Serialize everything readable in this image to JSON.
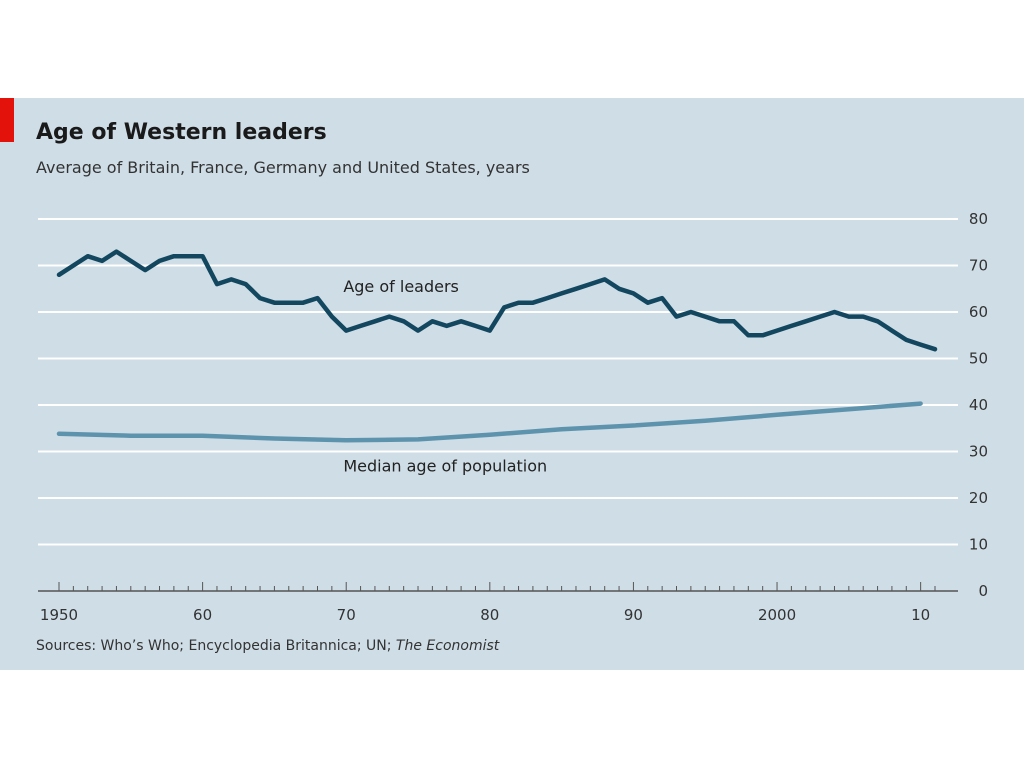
{
  "colors": {
    "panel": "#cfdde6",
    "accent": "#e3120b",
    "grid": "#ffffff",
    "leaders_line": "#12475f",
    "population_line": "#5e93ad"
  },
  "source": {
    "prefix": "Sources: Who’s Who; Encyclopedia Britannica; UN; ",
    "italic": "The Economist"
  },
  "chart_data": {
    "type": "line",
    "title": "Age of Western leaders",
    "subtitle": "Average of Britain, France, Germany and United States, years",
    "xlabel": "",
    "ylabel": "",
    "xlim": [
      1950,
      2011
    ],
    "ylim": [
      0,
      80
    ],
    "x_ticks": [
      1950,
      1960,
      1970,
      1980,
      1990,
      2000,
      2010
    ],
    "x_tick_labels": [
      "1950",
      "60",
      "70",
      "80",
      "90",
      "2000",
      "10"
    ],
    "y_ticks": [
      0,
      10,
      20,
      30,
      40,
      50,
      60,
      70,
      80
    ],
    "y_tick_labels": [
      "0",
      "10",
      "20",
      "30",
      "40",
      "50",
      "60",
      "70",
      "80"
    ],
    "grid": "horizontal",
    "legend": "none",
    "series": [
      {
        "name": "Age of leaders",
        "x": [
          1950,
          1951,
          1952,
          1953,
          1954,
          1955,
          1956,
          1957,
          1958,
          1959,
          1960,
          1961,
          1962,
          1963,
          1964,
          1965,
          1966,
          1967,
          1968,
          1969,
          1970,
          1971,
          1972,
          1973,
          1974,
          1975,
          1976,
          1977,
          1978,
          1979,
          1980,
          1981,
          1982,
          1983,
          1984,
          1985,
          1986,
          1987,
          1988,
          1989,
          1990,
          1991,
          1992,
          1993,
          1994,
          1995,
          1996,
          1997,
          1998,
          1999,
          2000,
          2001,
          2002,
          2003,
          2004,
          2005,
          2006,
          2007,
          2008,
          2009,
          2010,
          2011
        ],
        "values": [
          68,
          70,
          72,
          71,
          73,
          71,
          69,
          71,
          72,
          72,
          72,
          66,
          67,
          66,
          63,
          62,
          62,
          62,
          63,
          59,
          56,
          57,
          58,
          59,
          58,
          56,
          58,
          57,
          58,
          57,
          56,
          61,
          62,
          62,
          63,
          64,
          65,
          66,
          67,
          65,
          64,
          62,
          63,
          59,
          60,
          59,
          58,
          58,
          55,
          55,
          56,
          57,
          58,
          59,
          60,
          59,
          59,
          58,
          56,
          54,
          53,
          52
        ]
      },
      {
        "name": "Median age of population",
        "x": [
          1950,
          1955,
          1960,
          1965,
          1970,
          1975,
          1980,
          1985,
          1990,
          1995,
          2000,
          2005,
          2010
        ],
        "values": [
          33.8,
          33.4,
          33.4,
          32.8,
          32.4,
          32.6,
          33.6,
          34.8,
          35.6,
          36.6,
          37.9,
          39.1,
          40.3
        ]
      }
    ]
  }
}
